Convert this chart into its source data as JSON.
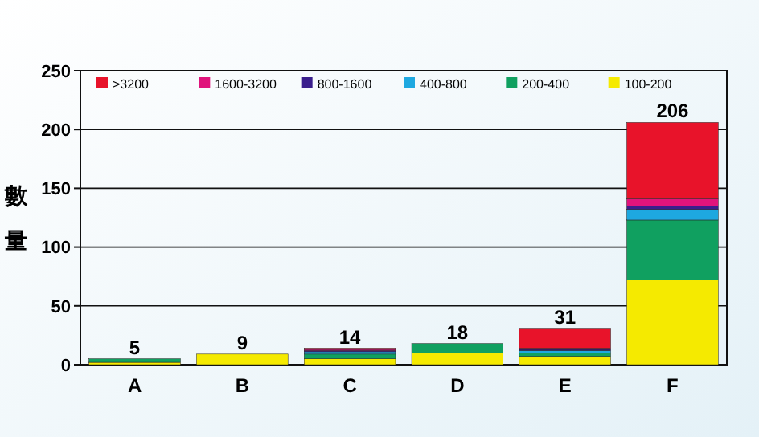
{
  "chart_data": {
    "type": "bar",
    "ylabel": "數量",
    "stacked": true,
    "categories": [
      "A",
      "B",
      "C",
      "D",
      "E",
      "F"
    ],
    "series": [
      {
        "name": "100-200",
        "color": "#f5ea00",
        "values": [
          2,
          9,
          5,
          10,
          7,
          72
        ]
      },
      {
        "name": "200-400",
        "color": "#10a060",
        "values": [
          3,
          0,
          4,
          8,
          3,
          51
        ]
      },
      {
        "name": "400-800",
        "color": "#1ea8e0",
        "values": [
          0,
          0,
          2,
          0,
          2,
          9
        ]
      },
      {
        "name": "800-1600",
        "color": "#3a1e8c",
        "values": [
          0,
          0,
          1,
          0,
          1,
          3
        ]
      },
      {
        "name": "1600-3200",
        "color": "#e0147c",
        "values": [
          0,
          0,
          1,
          0,
          1,
          6
        ]
      },
      {
        "name": ">3200",
        "color": "#e8132a",
        "values": [
          0,
          0,
          1,
          0,
          17,
          65
        ]
      }
    ],
    "totals": [
      "5",
      "9",
      "14",
      "18",
      "31",
      "206"
    ],
    "ylim": [
      0,
      250
    ],
    "yticks": [
      0,
      50,
      100,
      150,
      200,
      250
    ],
    "grid": "y",
    "legend": "top"
  }
}
